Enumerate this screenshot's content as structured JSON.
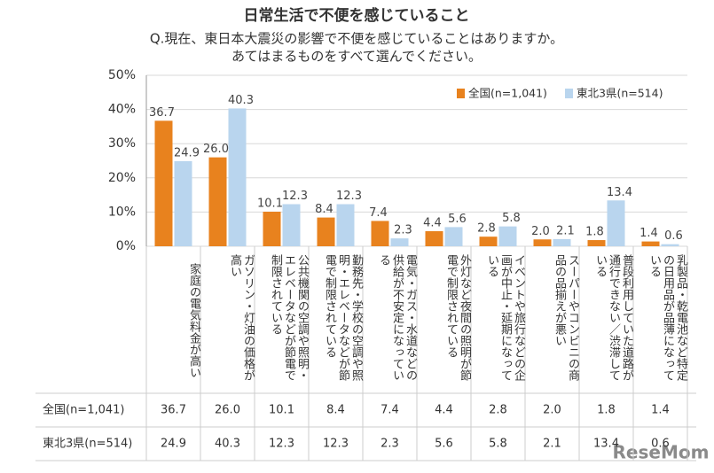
{
  "chart_data": {
    "type": "bar",
    "title": "日常生活で不便を感じていること",
    "subtitle": [
      "Q.現在、東日本大震災の影響で不便を感じていることはありますか。",
      "あてはまるものをすべて選んでください。"
    ],
    "categories": [
      "家庭の電気料金が高い",
      "ガソリン・灯油の価格が高い",
      "公共機関の空調や照明・エレベータなどが節電で制限されている",
      "勤務先・学校の空調や照明・エレベータなどが節電で制限されている",
      "電気・ガス・水道などの供給が不安定になっている",
      "外灯など夜間の照明が節電で制限されている",
      "イベントや旅行などの企画が中止・延期になっている",
      "スーパーやコンビニの商品の品揃えが悪い",
      "普段利用していた道路が通行できない／渋滞している",
      "乳製品・乾電池など特定の日用品が品薄になっている"
    ],
    "series": [
      {
        "name": "全国(n=1,041)",
        "color": "#e8821e",
        "values": [
          36.7,
          26.0,
          10.1,
          8.4,
          7.4,
          4.4,
          2.8,
          2.0,
          1.8,
          1.4
        ],
        "value_labels": [
          "36.7",
          "26.0",
          "10.1",
          "8.4",
          "7.4",
          "4.4",
          "2.8",
          "2.0",
          "1.8",
          "1.4"
        ]
      },
      {
        "name": "東北3県(n=514)",
        "color": "#b9d5ee",
        "values": [
          24.9,
          40.3,
          12.3,
          12.3,
          2.3,
          5.6,
          5.8,
          2.1,
          13.4,
          0.6
        ],
        "value_labels": [
          "24.9",
          "40.3",
          "12.3",
          "12.3",
          "2.3",
          "5.6",
          "5.8",
          "2.1",
          "13.4",
          "0.6"
        ]
      }
    ],
    "ylim": [
      0,
      50
    ],
    "yticks": [
      {
        "value": 0,
        "label": "0%"
      },
      {
        "value": 10,
        "label": "10%"
      },
      {
        "value": 20,
        "label": "20%"
      },
      {
        "value": 30,
        "label": "30%"
      },
      {
        "value": 40,
        "label": "40%"
      },
      {
        "value": 50,
        "label": "50%"
      }
    ],
    "legend": "upper right",
    "watermark": "ReseMom"
  }
}
